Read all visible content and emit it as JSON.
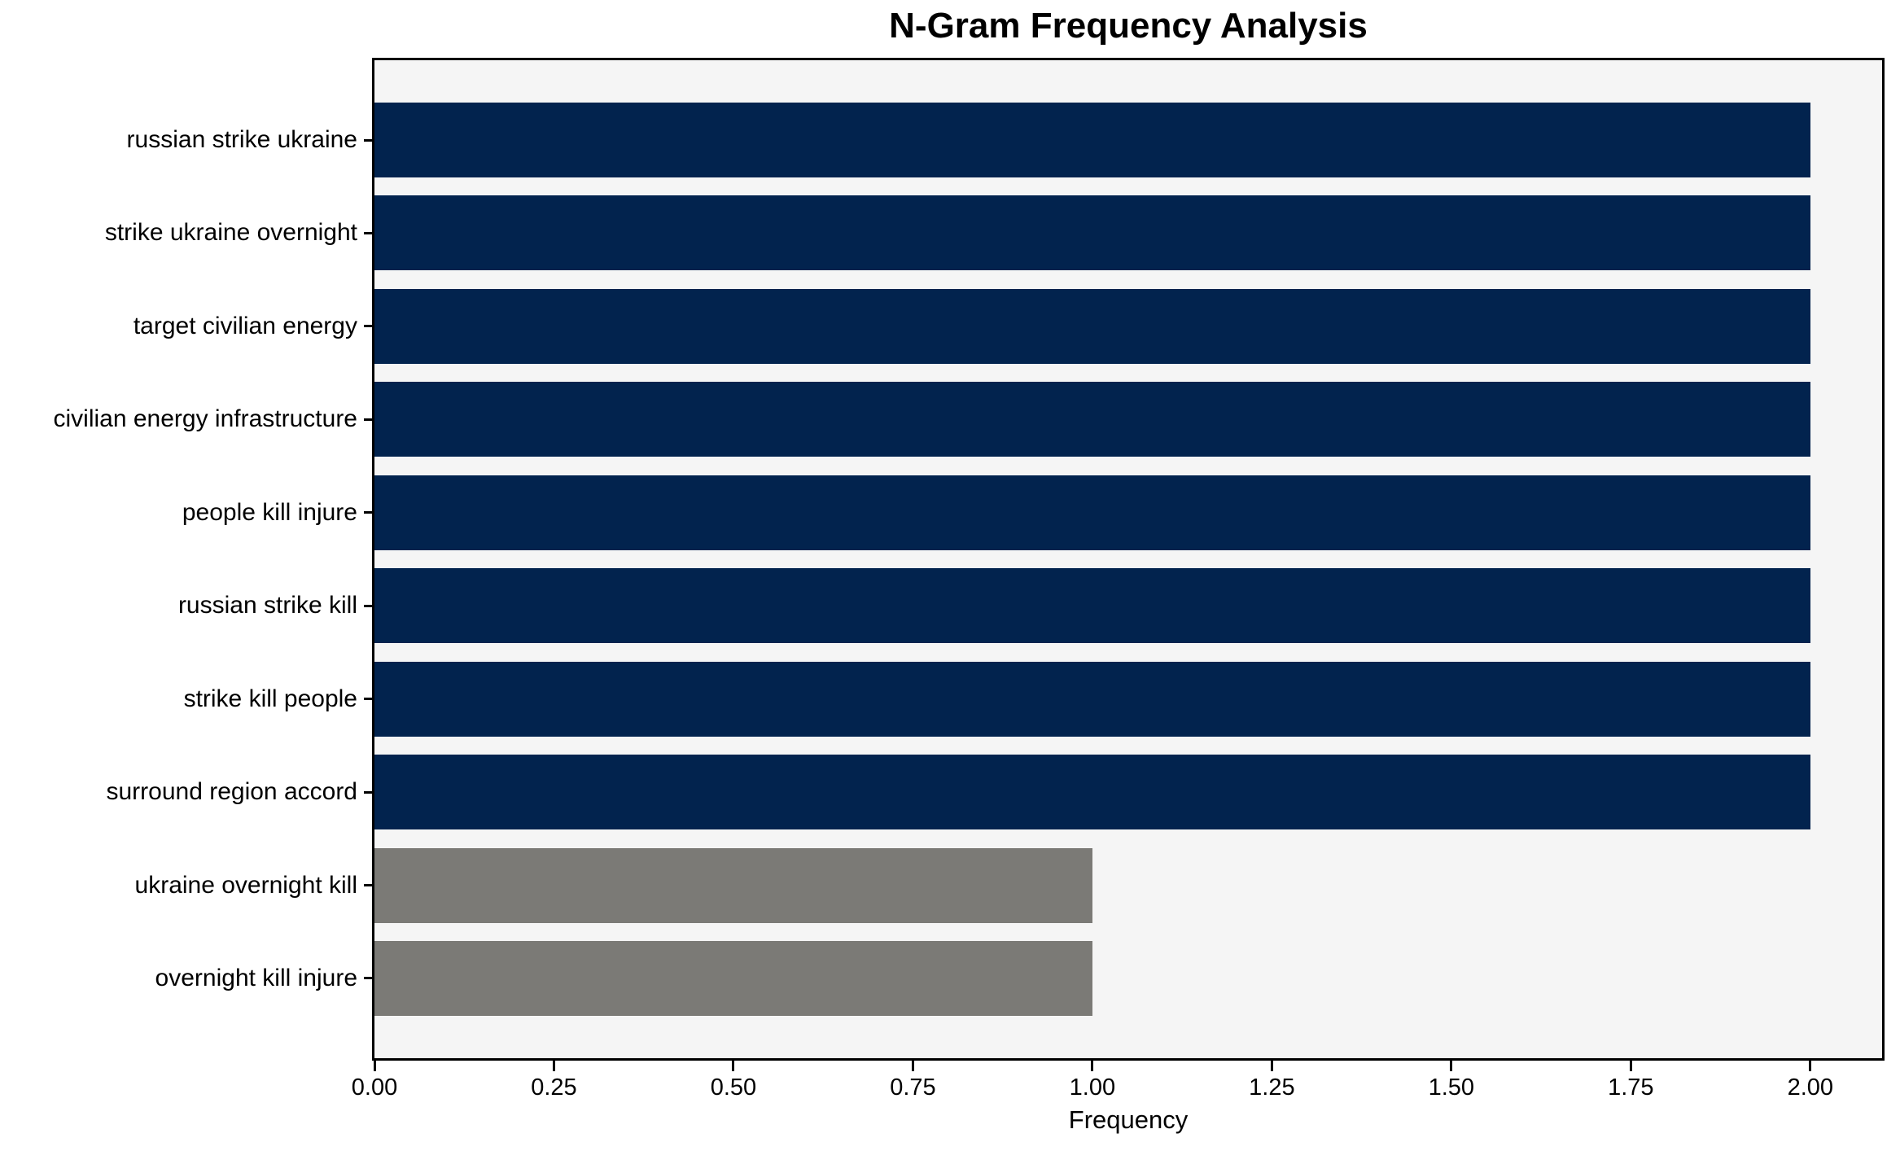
{
  "chart_data": {
    "type": "bar",
    "orientation": "horizontal",
    "title": "N-Gram Frequency Analysis",
    "xlabel": "Frequency",
    "ylabel": "",
    "categories": [
      "russian strike ukraine",
      "strike ukraine overnight",
      "target civilian energy",
      "civilian energy infrastructure",
      "people kill injure",
      "russian strike kill",
      "strike kill people",
      "surround region accord",
      "ukraine overnight kill",
      "overnight kill injure"
    ],
    "values": [
      2,
      2,
      2,
      2,
      2,
      2,
      2,
      2,
      1,
      1
    ],
    "bar_colors": [
      "#02234e",
      "#02234e",
      "#02234e",
      "#02234e",
      "#02234e",
      "#02234e",
      "#02234e",
      "#02234e",
      "#7b7a76",
      "#7b7a76"
    ],
    "xticks": [
      "0.00",
      "0.25",
      "0.50",
      "0.75",
      "1.00",
      "1.25",
      "1.50",
      "1.75",
      "2.00"
    ],
    "xtick_values": [
      0,
      0.25,
      0.5,
      0.75,
      1.0,
      1.25,
      1.5,
      1.75,
      2.0
    ],
    "xlim": [
      0,
      2.1
    ],
    "grid": false,
    "legend_position": "none",
    "colors": {
      "bar_strong": "#02234e",
      "bar_weak": "#7b7a76",
      "plot_background": "#f5f5f5",
      "figure_background": "#ffffff",
      "axis_frame": "#000000",
      "text": "#000000"
    }
  }
}
